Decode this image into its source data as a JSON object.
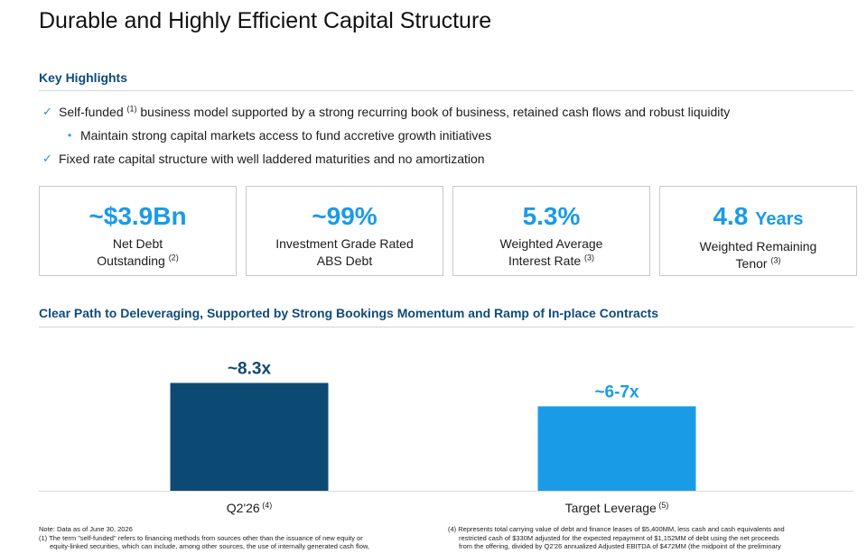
{
  "title": "Durable and Highly Efficient Capital Structure",
  "key_highlights": {
    "heading": "Key Highlights",
    "bullets": [
      {
        "text_a": "Self-funded ",
        "sup": "(1)",
        "text_b": " business model supported by a strong recurring book of business, retained cash flows and robust liquidity"
      },
      {
        "text": "Maintain strong capital markets access to fund accretive growth initiatives"
      },
      {
        "text": "Fixed rate capital structure with well laddered maturities and no amortization"
      }
    ]
  },
  "metrics": [
    {
      "value": "~$3.9Bn",
      "unit": "",
      "line1": "Net Debt",
      "line2": "Outstanding",
      "sup": "(2)"
    },
    {
      "value": "~99%",
      "unit": "",
      "line1": "Investment Grade Rated",
      "line2": "ABS Debt",
      "sup": ""
    },
    {
      "value": "5.3%",
      "unit": "",
      "line1": "Weighted Average",
      "line2": "Interest Rate",
      "sup": "(3)"
    },
    {
      "value": "4.8",
      "unit": "Years",
      "line1": "Weighted Remaining",
      "line2": "Tenor",
      "sup": "(3)"
    }
  ],
  "deleveraging": {
    "heading": "Clear Path to Deleveraging, Supported by Strong Bookings Momentum and Ramp of In-place Contracts"
  },
  "chart_data": {
    "type": "bar",
    "categories": [
      "Q2'26",
      "Target Leverage"
    ],
    "category_sups": [
      "(4)",
      "(5)"
    ],
    "values": [
      8.3,
      6.5
    ],
    "value_labels": [
      "~8.3x",
      "~6-7x"
    ],
    "colors": [
      "#0d4a73",
      "#1a9be6"
    ],
    "title": "",
    "xlabel": "",
    "ylabel": "",
    "ylim": [
      0,
      10
    ],
    "grid": false
  },
  "footnotes": {
    "left": [
      "Note: Data as of June 30, 2026",
      "(1) The term \"self-funded\" refers to financing methods from sources other than the issuance of new equity or",
      "equity-linked securities, which can include, among other sources, the use of internally generated cash flow,"
    ],
    "right": [
      "(4) Represents total carrying value of debt and finance leases of $5,400MM, less cash and cash equivalents and",
      "restricted cash of $330M adjusted for the expected repayment of $1,152MM of debt using the net proceeds",
      "from the offering, divided by Q2'26 annualized Adjusted EBITDA of $472MM (the midpoint of the preliminary"
    ]
  }
}
